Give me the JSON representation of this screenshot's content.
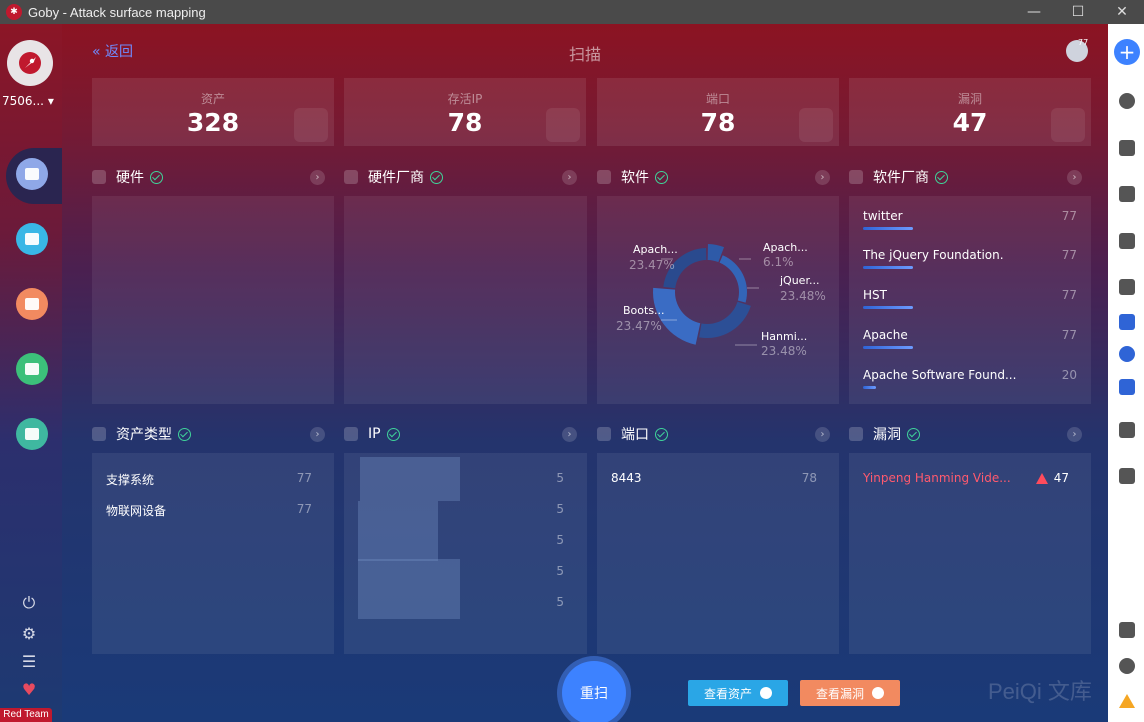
{
  "window": {
    "title": "Goby - Attack surface mapping",
    "minimize": "—",
    "maximize": "☐",
    "close": "✕"
  },
  "left": {
    "user": "7506...",
    "footer": "Red Team"
  },
  "header": {
    "back": "« 返回",
    "title": "扫描",
    "globe_badge": "77"
  },
  "stats": [
    {
      "label": "资产",
      "value": "328"
    },
    {
      "label": "存活IP",
      "value": "78"
    },
    {
      "label": "端口",
      "value": "78"
    },
    {
      "label": "漏洞",
      "value": "47"
    }
  ],
  "sections": {
    "hardware": "硬件",
    "hardware_vendor": "硬件厂商",
    "software": "软件",
    "software_vendor": "软件厂商",
    "asset_type": "资产类型",
    "ip": "IP",
    "port": "端口",
    "vuln": "漏洞"
  },
  "software_chart": {
    "type": "pie",
    "labels": [
      {
        "name": "Apach...",
        "pct": "23.47%"
      },
      {
        "name": "Apach...",
        "pct": "6.1%"
      },
      {
        "name": "jQuer...",
        "pct": "23.48%"
      },
      {
        "name": "Boots...",
        "pct": "23.47%"
      },
      {
        "name": "Hanmi...",
        "pct": "23.48%"
      }
    ]
  },
  "software_vendors": [
    {
      "name": "twitter",
      "count": "77",
      "ratio": 0.24
    },
    {
      "name": "The jQuery Foundation.",
      "count": "77",
      "ratio": 0.24
    },
    {
      "name": "HST",
      "count": "77",
      "ratio": 0.24
    },
    {
      "name": "Apache",
      "count": "77",
      "ratio": 0.24
    },
    {
      "name": "Apache Software Found...",
      "count": "20",
      "ratio": 0.06
    }
  ],
  "asset_types": [
    {
      "name": "支撑系统",
      "count": "77"
    },
    {
      "name": "物联网设备",
      "count": "77"
    }
  ],
  "ips": [
    {
      "count": "5"
    },
    {
      "count": "5"
    },
    {
      "count": "5"
    },
    {
      "count": "5"
    },
    {
      "count": "5"
    }
  ],
  "ports": [
    {
      "port": "8443",
      "count": "78"
    }
  ],
  "vulns": [
    {
      "name": "Yinpeng Hanming Vide...",
      "count": "47"
    }
  ],
  "actions": {
    "rescan": "重扫",
    "view_assets": "查看资产",
    "view_vulns": "查看漏洞"
  },
  "watermark": "PeiQi 文库",
  "colors": {
    "accent": "#3d82ff",
    "danger": "#ff4b5c",
    "ok": "#3fd39a",
    "assets_btn": "#2aa6e6",
    "vulns_btn": "#f28a60"
  }
}
